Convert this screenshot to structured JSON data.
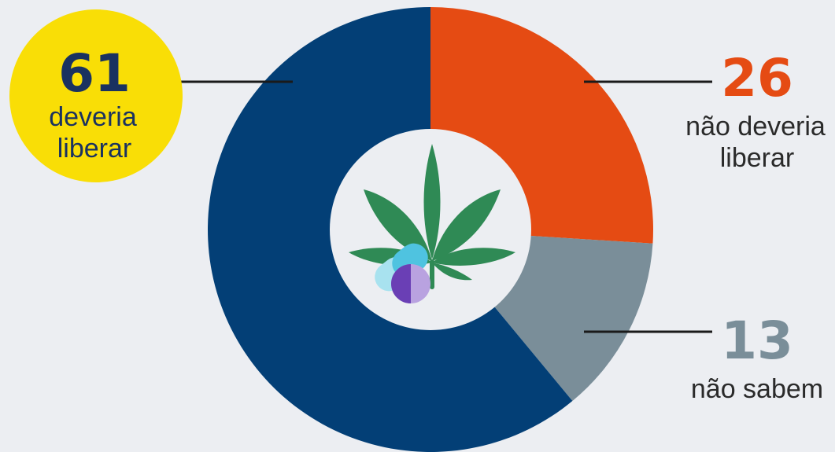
{
  "chart_data": {
    "type": "pie",
    "variant": "donut",
    "slices": [
      {
        "value": 61,
        "value_label": "61",
        "label_line1": "deveria",
        "label_line2": "liberar",
        "color": "#033f76",
        "label_color": "#1a3260"
      },
      {
        "value": 26,
        "value_label": "26",
        "label_line1": "não deveria",
        "label_line2": "liberar",
        "color": "#e54b13",
        "label_color": "#e54b13"
      },
      {
        "value": 13,
        "value_label": "13",
        "label_line1": "não sabem",
        "label_line2": "",
        "color": "#7a8e99",
        "label_color": "#7a8e99"
      }
    ]
  },
  "colors": {
    "background": "#eceef2",
    "highlight_circle": "#f9de06",
    "connector": "#1a1a1a",
    "center_hole": "#eceef2",
    "leaf": "#2f8a55",
    "pill_light": "#a8e2ef",
    "pill_blue": "#4fc3e0",
    "capsule_dark": "#6a3fb5",
    "capsule_light": "#b9a2e0"
  },
  "center_icon": "cannabis-leaf-with-pills-icon"
}
